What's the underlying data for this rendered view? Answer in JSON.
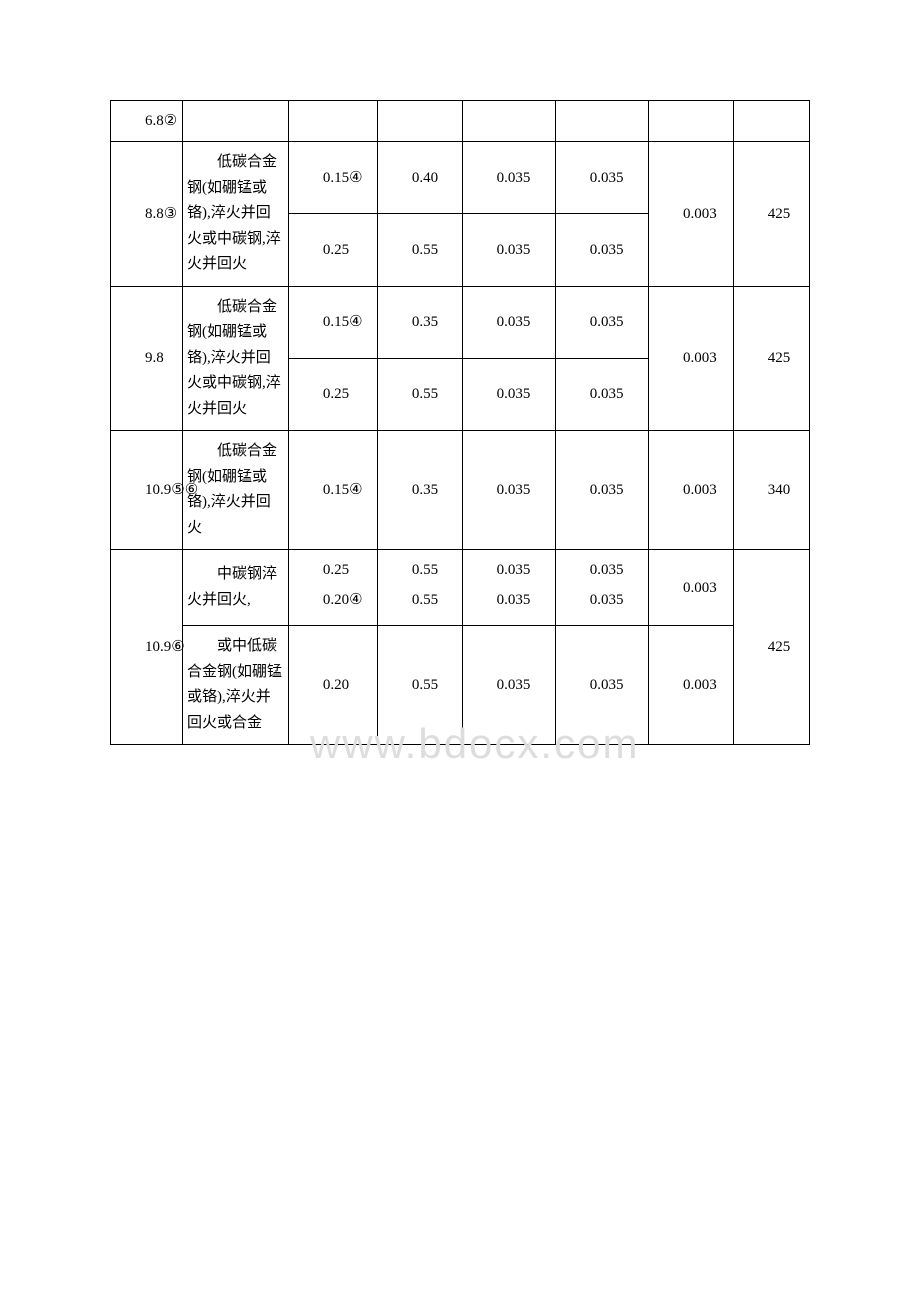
{
  "watermark": "www.bdocx.com",
  "table": {
    "columns": [
      "col1",
      "col2",
      "col3",
      "col4",
      "col5",
      "col6",
      "col7",
      "col8"
    ],
    "column_widths_pct": [
      8.5,
      12.5,
      10.5,
      10,
      11,
      11,
      10,
      9
    ],
    "border_color": "#000000",
    "text_color": "#000000",
    "background_color": "#ffffff",
    "font_size": 15,
    "rows": [
      {
        "id": "r0",
        "c1": "6.8②",
        "c2": "",
        "c3": "",
        "c4": "",
        "c5": "",
        "c6": "",
        "c7": "",
        "c8": ""
      },
      {
        "id": "r1",
        "c1": "8.8③",
        "c2": "低碳合金钢(如硼锰或铬),淬火并回火或中碳钢,淬火并回火",
        "c3a": "0.15④",
        "c3b": "0.25",
        "c4a": "0.40",
        "c4b": "0.55",
        "c5a": "0.035",
        "c5b": "0.035",
        "c6a": "0.035",
        "c6b": "0.035",
        "c7": "0.003",
        "c8": "425"
      },
      {
        "id": "r2",
        "c1": "9.8",
        "c2": "低碳合金钢(如硼锰或铬),淬火并回火或中碳钢,淬火并回火",
        "c3a": "0.15④",
        "c3b": "0.25",
        "c4a": "0.35",
        "c4b": "0.55",
        "c5a": "0.035",
        "c5b": "0.035",
        "c6a": "0.035",
        "c6b": "0.035",
        "c7": "0.003",
        "c8": "425"
      },
      {
        "id": "r3",
        "c1": "10.9⑤⑥",
        "c2": "低碳合金钢(如硼锰或铬),淬火并回火",
        "c3": "0.15④",
        "c4": "0.35",
        "c5": "0.035",
        "c6": "0.035",
        "c7": "0.003",
        "c8": "340"
      },
      {
        "id": "r4",
        "c1": "10.9⑥",
        "c2a": "中碳钢淬火并回火,",
        "c2b": "或中低碳合金钢(如硼锰或铬),淬火并回火或合金",
        "c3a": "0.25",
        "c3b": "0.20④",
        "c3c": "0.20",
        "c4a": "0.55",
        "c4b": "0.55",
        "c4c": "0.55",
        "c5a": "0.035",
        "c5b": "0.035",
        "c5c": "0.035",
        "c6a": "0.035",
        "c6b": "0.035",
        "c6c": "0.035",
        "c7a": "0.003",
        "c7b": "0.003",
        "c8": "425"
      }
    ]
  }
}
